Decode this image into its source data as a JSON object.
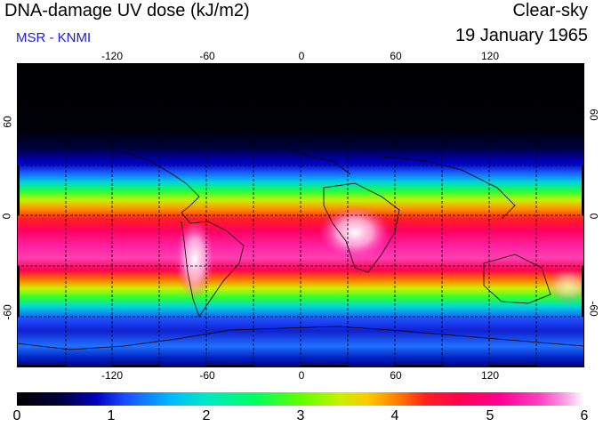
{
  "header": {
    "title": "DNA-damage UV dose (kJ/m2)",
    "subtitle": "MSR - KNMI",
    "condition": "Clear-sky",
    "date": "19 January 1965"
  },
  "colors": {
    "subtitle": "#1a1adb",
    "palette": [
      "#000000",
      "#000040",
      "#0000c0",
      "#1a4cff",
      "#00b8ff",
      "#00e6c8",
      "#00ff60",
      "#60ff00",
      "#c8f000",
      "#ffc800",
      "#ff8000",
      "#ff2020",
      "#ff0050",
      "#ff0090",
      "#ff40c0",
      "#ff90e0",
      "#ffe0f0",
      "#ffffff"
    ]
  },
  "map": {
    "lon_ticks_top": [
      "-120",
      "-60",
      "0",
      "60",
      "120"
    ],
    "lon_ticks_bottom": [
      "-120",
      "-60",
      "0",
      "60",
      "120"
    ],
    "lat_ticks_left": [
      "60",
      "0",
      "-60"
    ],
    "lat_ticks_right": [
      "60",
      "0",
      "-60"
    ]
  },
  "colorbar": {
    "labels": [
      "0",
      "1",
      "2",
      "3",
      "4",
      "5",
      "6"
    ],
    "min": 0,
    "max": 6
  }
}
